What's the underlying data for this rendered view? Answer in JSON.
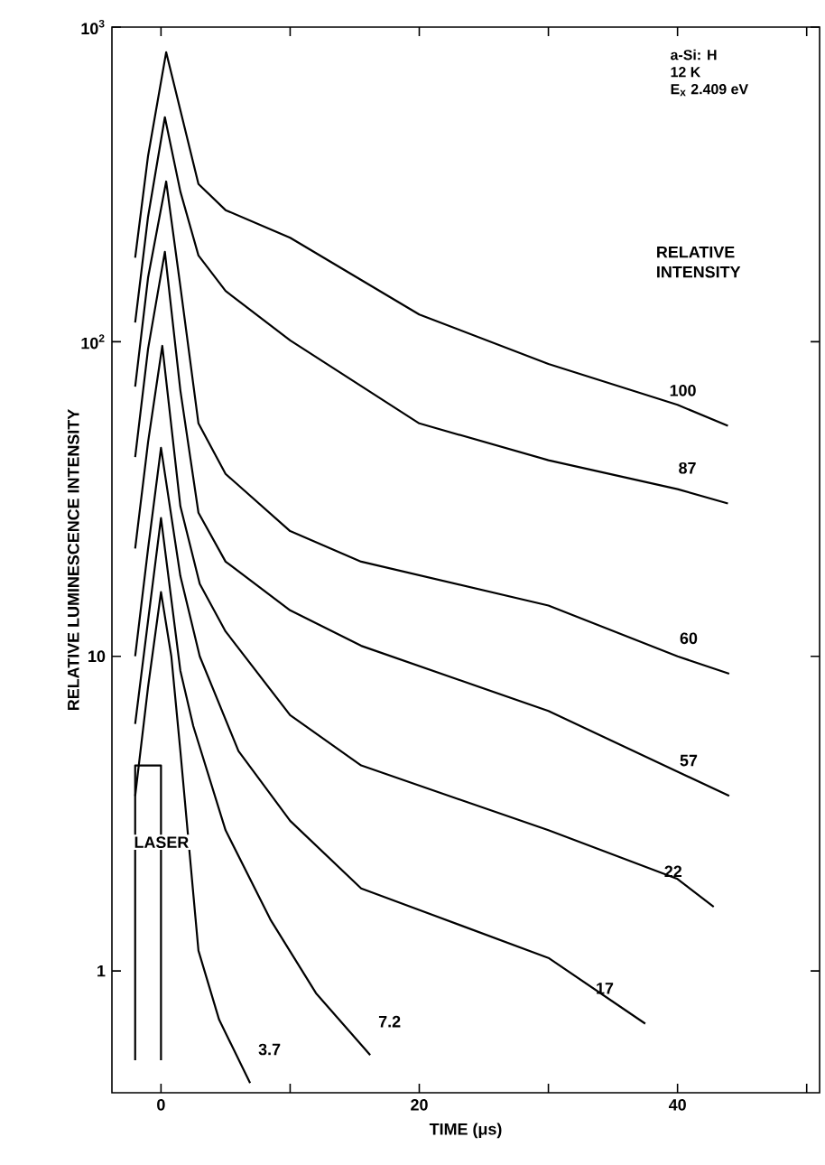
{
  "chart_data": {
    "type": "line",
    "xlabel": "TIME (μs)",
    "ylabel": "RELATIVE LUMINESCENCE INTENSITY",
    "legend_title": "RELATIVE INTENSITY",
    "log": "y",
    "line_style": "solid",
    "annotations": [
      "a-Si: H",
      "12 K",
      "E$_{x}$ 2.409 eV",
      "LASER"
    ],
    "xlim": [
      -3.8,
      51
    ],
    "ylim": [
      0.41,
      1000
    ],
    "xticks": [
      0,
      {
        "value": 10,
        "label": null
      },
      20,
      {
        "value": 30,
        "label": null
      },
      40,
      {
        "value": 50,
        "label": null
      }
    ],
    "yticks": [
      1,
      10,
      {
        "value": 100,
        "label": "10$^{2}$"
      },
      {
        "value": 1000,
        "label": "10$^{3}$"
      }
    ],
    "series": [
      {
        "name": "100",
        "color": "#000000",
        "x": [
          -2,
          -1,
          0.4,
          2.9,
          5,
          10,
          20,
          30,
          40,
          43.9
        ],
        "values": [
          185,
          390,
          832,
          317,
          262,
          214,
          122,
          85,
          63,
          54
        ]
      },
      {
        "name": "87",
        "color": "#000000",
        "x": [
          -2,
          -1,
          0.3,
          1.5,
          2.9,
          5,
          10,
          20,
          30,
          40,
          43.9
        ],
        "values": [
          115,
          250,
          517,
          300,
          188,
          145,
          101,
          55,
          42,
          34,
          30.6
        ]
      },
      {
        "name": "60",
        "color": "#000000",
        "x": [
          -2,
          -1,
          0.4,
          1.5,
          2.9,
          5,
          10,
          15.5,
          30,
          40,
          44
        ],
        "values": [
          72,
          160,
          323,
          150,
          55,
          38,
          25,
          20,
          14.5,
          10,
          8.8
        ]
      },
      {
        "name": "57",
        "color": "#000000",
        "x": [
          -2,
          -1,
          0.3,
          1.5,
          2.9,
          5,
          10,
          15.5,
          30,
          40,
          44
        ],
        "values": [
          43,
          95,
          193,
          70,
          28.6,
          20,
          14,
          10.8,
          6.7,
          4.3,
          3.6
        ]
      },
      {
        "name": "22",
        "color": "#000000",
        "x": [
          -2,
          -1,
          0.1,
          1.5,
          3,
          5,
          10,
          15.5,
          30,
          40,
          42.8
        ],
        "values": [
          22,
          48,
          97,
          30,
          17,
          12,
          6.5,
          4.5,
          2.8,
          1.96,
          1.6
        ]
      },
      {
        "name": "17",
        "color": "#000000",
        "x": [
          -2,
          -1,
          0,
          1.5,
          3,
          6,
          10,
          15.5,
          30,
          37.5
        ],
        "values": [
          10,
          22,
          46,
          18,
          10,
          5,
          3,
          1.83,
          1.1,
          0.68
        ]
      },
      {
        "name": "7.2",
        "color": "#000000",
        "x": [
          -2,
          -1,
          0,
          1.5,
          2.5,
          5,
          8.5,
          12,
          16.2
        ],
        "values": [
          6.1,
          13,
          27.5,
          9,
          6,
          2.8,
          1.45,
          0.85,
          0.54
        ]
      },
      {
        "name": "3.7",
        "color": "#000000",
        "x": [
          -2,
          -1,
          0,
          0.8,
          1.5,
          2.9,
          4.5,
          6.9
        ],
        "values": [
          3.6,
          8,
          16,
          10,
          5,
          1.16,
          0.7,
          0.44
        ]
      },
      {
        "color": "#000000",
        "x": [
          -2,
          -2,
          0,
          0
        ],
        "values": [
          0.52,
          4.5,
          4.5,
          0.52
        ]
      }
    ]
  }
}
